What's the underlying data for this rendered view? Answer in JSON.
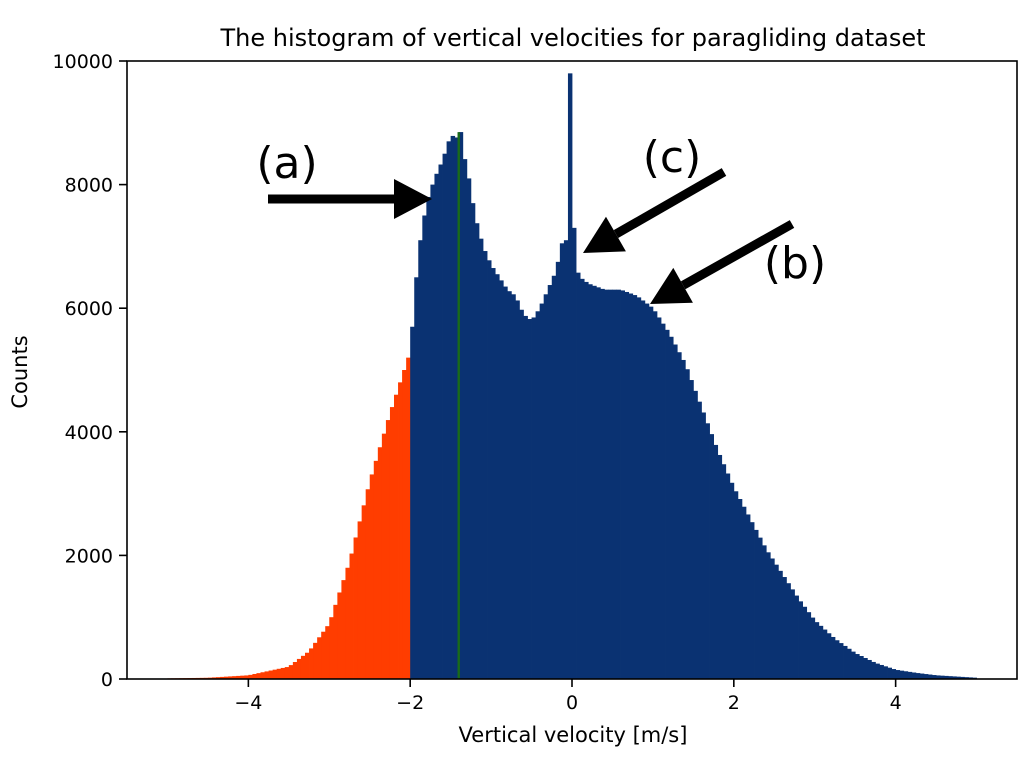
{
  "chart_data": {
    "type": "bar",
    "title": "The histogram of vertical velocities for paragliding dataset",
    "xlabel": "Vertical velocity [m/s]",
    "ylabel": "Counts",
    "xlim": [
      -5.5,
      5.5
    ],
    "ylim": [
      0,
      10000
    ],
    "x_ticks": [
      -4,
      -2,
      0,
      2,
      4
    ],
    "x_tick_labels": [
      "−4",
      "−2",
      "0",
      "2",
      "4"
    ],
    "y_ticks": [
      0,
      2000,
      4000,
      6000,
      8000,
      10000
    ],
    "y_tick_labels": [
      "0",
      "2000",
      "4000",
      "6000",
      "8000",
      "10000"
    ],
    "colors": {
      "below": "#ff3d00",
      "above": "#0a3272",
      "marker": "#1a6b1a"
    },
    "threshold": -2.0,
    "marker_line_x": -1.4,
    "profile_x": [
      -5.0,
      -4.5,
      -4.0,
      -3.5,
      -3.25,
      -3.0,
      -2.75,
      -2.5,
      -2.25,
      -2.0,
      -1.9,
      -1.8,
      -1.7,
      -1.6,
      -1.5,
      -1.4,
      -1.3,
      -1.2,
      -1.1,
      -1.0,
      -0.9,
      -0.8,
      -0.7,
      -0.6,
      -0.5,
      -0.4,
      -0.3,
      -0.2,
      -0.1,
      0.0,
      0.1,
      0.2,
      0.4,
      0.6,
      0.8,
      1.0,
      1.2,
      1.4,
      1.6,
      1.8,
      2.0,
      2.2,
      2.4,
      2.6,
      2.8,
      3.0,
      3.25,
      3.5,
      3.75,
      4.0,
      4.25,
      4.5,
      4.75,
      5.0
    ],
    "profile_counts": [
      10,
      20,
      60,
      200,
      450,
      900,
      1900,
      3200,
      4300,
      5300,
      6900,
      7700,
      8100,
      8400,
      8800,
      8750,
      8300,
      7500,
      7000,
      6700,
      6500,
      6300,
      6200,
      5900,
      5800,
      6000,
      6300,
      6600,
      7200,
      6800,
      6500,
      6400,
      6300,
      6300,
      6200,
      6000,
      5600,
      5100,
      4400,
      3700,
      3100,
      2600,
      2100,
      1700,
      1300,
      950,
      650,
      420,
      260,
      150,
      100,
      60,
      40,
      20
    ],
    "spikes": [
      {
        "x": -1.4,
        "count": 8850
      },
      {
        "x": -0.05,
        "count": 9800
      },
      {
        "x": 0.0,
        "count": 7300
      }
    ],
    "bin_width": 0.05,
    "annotations": [
      {
        "label": "(a)",
        "points_to_x": -1.75,
        "points_to_y": 8100
      },
      {
        "label": "(b)",
        "points_to_x": 0.9,
        "points_to_y": 6150
      },
      {
        "label": "(c)",
        "points_to_x": 0.1,
        "points_to_y": 7100
      }
    ]
  }
}
